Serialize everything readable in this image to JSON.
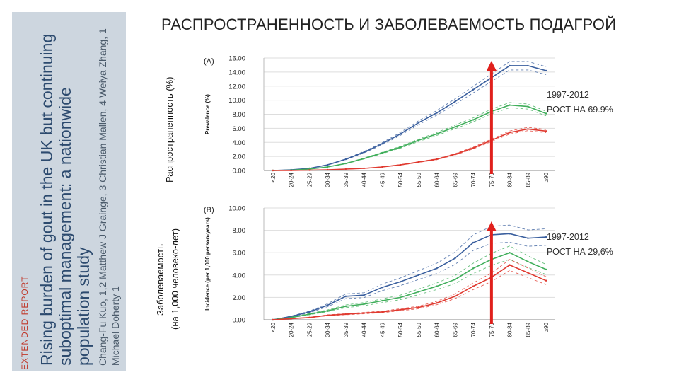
{
  "slide": {
    "title": "РАСПРОСТРАНЕННОСТЬ И ЗАБОЛЕВАЕМОСТЬ ПОДАГРОЙ",
    "side_label_prevalence": "Распространенность (%)",
    "side_label_incidence_1": "Заболеваемость",
    "side_label_incidence_2": "(на 1,000 человеко-лет)"
  },
  "paper": {
    "tag": "EXTENDED REPORT",
    "title_lines": [
      "Rising burden of gout in the UK but continuing",
      "suboptimal management: a nationwide",
      "population study"
    ],
    "authors_lines": [
      "Chang-Fu Kuo, 1,2 Matthew J Grainge, 3 Christian Mallen, 4 Weiya Zhang, 1",
      "Michael Doherty 1"
    ]
  },
  "annotations": {
    "prevalence_years": "1997-2012",
    "prevalence_growth": "РОСТ НА 69.9%",
    "incidence_years": "1997-2012",
    "incidence_growth": "РОСТ НА 29,6%"
  },
  "colors": {
    "blue": "#3a5f9e",
    "green": "#3fae5a",
    "red": "#e03a30",
    "arrow": "#e0201c"
  },
  "chart_data": [
    {
      "type": "line",
      "panel": "(A)",
      "ylabel": "Prevalence (%)",
      "categories": [
        "<20",
        "20-24",
        "25-29",
        "30-34",
        "35-39",
        "40-44",
        "45-49",
        "50-54",
        "55-59",
        "60-64",
        "65-69",
        "70-74",
        "75-79",
        "80-84",
        "85-89",
        "≥90"
      ],
      "ylim": [
        0,
        16
      ],
      "yticks": [
        "0.00",
        "2.00",
        "4.00",
        "6.00",
        "8.00",
        "10.00",
        "12.00",
        "14.00",
        "16.00"
      ],
      "series": [
        {
          "color": "blue",
          "values": [
            0.0,
            0.1,
            0.3,
            0.8,
            1.6,
            2.6,
            3.8,
            5.2,
            6.8,
            8.2,
            9.8,
            11.5,
            13.2,
            14.9,
            14.9,
            14.2
          ]
        },
        {
          "color": "green",
          "values": [
            0.0,
            0.05,
            0.2,
            0.5,
            1.0,
            1.7,
            2.5,
            3.3,
            4.3,
            5.2,
            6.2,
            7.2,
            8.4,
            9.3,
            9.1,
            8.1
          ]
        },
        {
          "color": "red",
          "values": [
            0.0,
            0.0,
            0.05,
            0.1,
            0.2,
            0.3,
            0.5,
            0.8,
            1.2,
            1.6,
            2.3,
            3.2,
            4.3,
            5.4,
            5.9,
            5.6
          ]
        }
      ]
    },
    {
      "type": "line",
      "panel": "(B)",
      "ylabel": "Incidence (per 1,000 person-years)",
      "categories": [
        "<20",
        "20-24",
        "25-29",
        "30-34",
        "35-39",
        "40-44",
        "45-49",
        "50-54",
        "55-59",
        "60-64",
        "65-69",
        "70-74",
        "75-79",
        "80-84",
        "85-89",
        "≥90"
      ],
      "ylim": [
        0,
        10
      ],
      "yticks": [
        "0.00",
        "2.00",
        "4.00",
        "6.00",
        "8.00",
        "10.00"
      ],
      "series": [
        {
          "color": "blue",
          "values": [
            0.0,
            0.3,
            0.7,
            1.3,
            2.1,
            2.2,
            2.9,
            3.4,
            4.0,
            4.6,
            5.5,
            6.9,
            7.6,
            7.7,
            7.3,
            7.4
          ]
        },
        {
          "color": "green",
          "values": [
            0.0,
            0.2,
            0.5,
            0.8,
            1.2,
            1.4,
            1.7,
            2.0,
            2.5,
            3.0,
            3.6,
            4.6,
            5.4,
            6.0,
            5.2,
            4.5
          ]
        },
        {
          "color": "red",
          "values": [
            0.0,
            0.1,
            0.2,
            0.4,
            0.5,
            0.6,
            0.7,
            0.9,
            1.1,
            1.5,
            2.1,
            3.0,
            3.8,
            4.9,
            4.2,
            3.5
          ]
        }
      ]
    }
  ]
}
